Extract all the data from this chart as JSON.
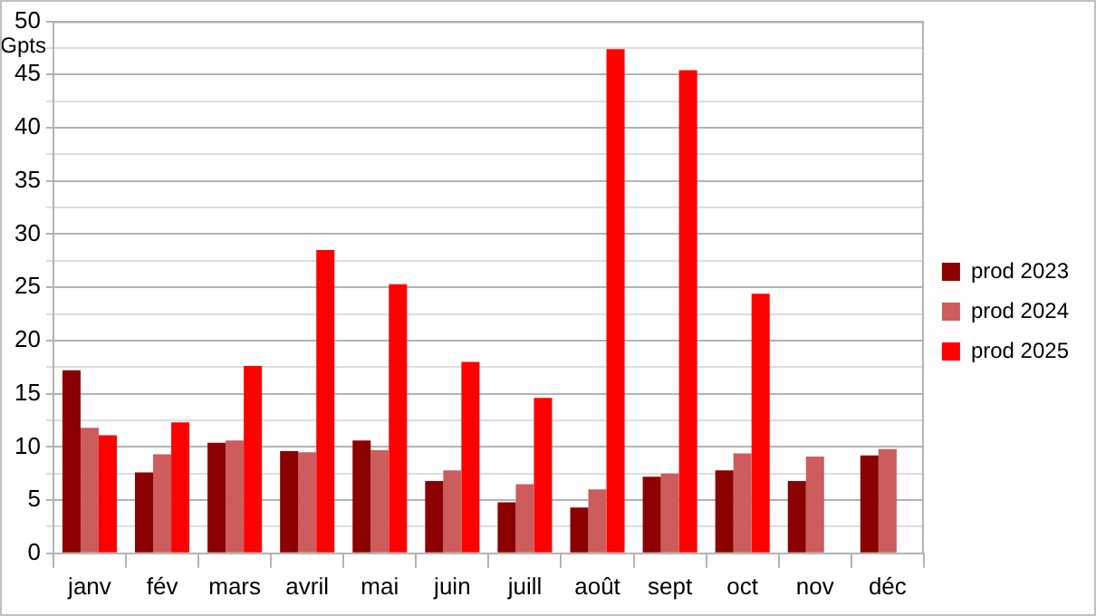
{
  "chart_data": {
    "type": "bar",
    "ylabel": "Gpts",
    "categories": [
      "janv",
      "fév",
      "mars",
      "avril",
      "mai",
      "juin",
      "juill",
      "août",
      "sept",
      "oct",
      "nov",
      "déc"
    ],
    "series": [
      {
        "name": "prod 2023",
        "color": "#8b0000",
        "values": [
          17.2,
          7.6,
          10.4,
          9.6,
          10.6,
          6.8,
          4.8,
          4.3,
          7.2,
          7.8,
          6.8,
          9.2
        ]
      },
      {
        "name": "prod 2024",
        "color": "#cd5c5c",
        "values": [
          11.8,
          9.3,
          10.6,
          9.5,
          9.7,
          7.8,
          6.5,
          6.0,
          7.5,
          9.4,
          9.1,
          9.8
        ]
      },
      {
        "name": "prod 2025",
        "color": "#ff0000",
        "values": [
          11.1,
          12.3,
          17.6,
          28.5,
          25.3,
          18.0,
          14.6,
          47.4,
          45.4,
          24.4,
          null,
          null
        ]
      }
    ],
    "ylim": [
      0,
      50
    ],
    "yticks": [
      0,
      {
        "value": 2.5,
        "label": null
      },
      5,
      {
        "value": 7.5,
        "label": null
      },
      10,
      {
        "value": 12.5,
        "label": null
      },
      15,
      {
        "value": 17.5,
        "label": null
      },
      20,
      {
        "value": 22.5,
        "label": null
      },
      25,
      {
        "value": 27.5,
        "label": null
      },
      30,
      {
        "value": 32.5,
        "label": null
      },
      35,
      {
        "value": 37.5,
        "label": null
      },
      40,
      {
        "value": 42.5,
        "label": null
      },
      45,
      {
        "value": 47.5,
        "label": null
      },
      50
    ],
    "grid": true,
    "legend": "right"
  }
}
